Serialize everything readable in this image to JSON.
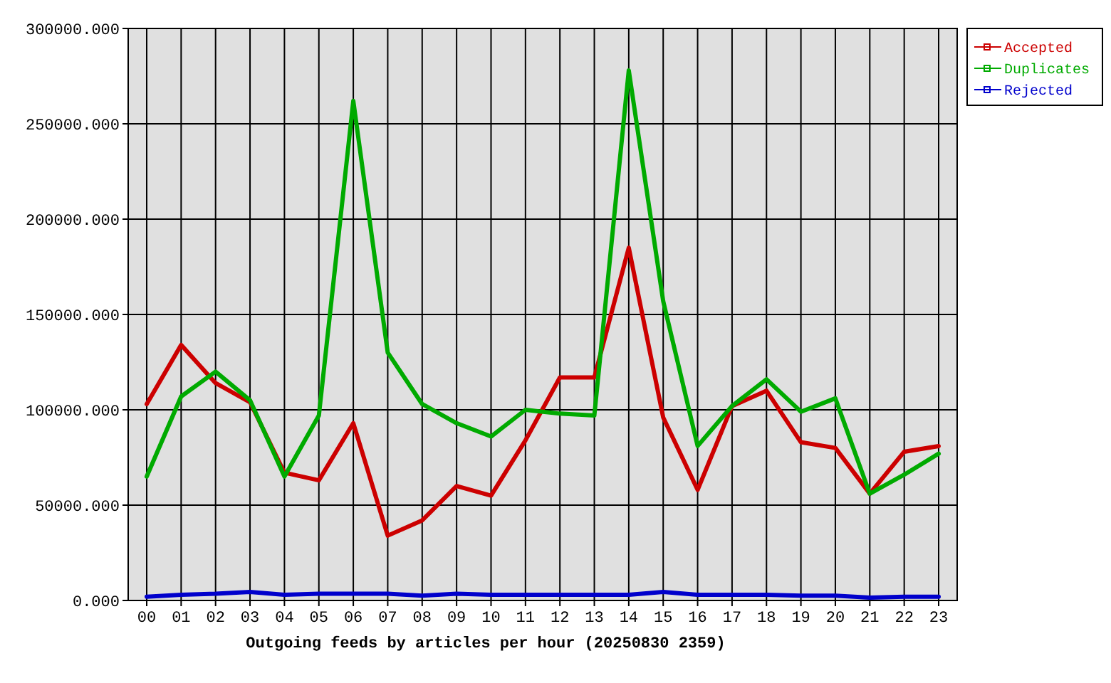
{
  "chart_data": {
    "type": "line",
    "xlabel": "Outgoing feeds by articles per hour (20250830 2359)",
    "categories": [
      "00",
      "01",
      "02",
      "03",
      "04",
      "05",
      "06",
      "07",
      "08",
      "09",
      "10",
      "11",
      "12",
      "13",
      "14",
      "15",
      "16",
      "17",
      "18",
      "19",
      "20",
      "21",
      "22",
      "23"
    ],
    "series": [
      {
        "name": "Accepted",
        "color": "#cc0000",
        "values": [
          103000,
          134000,
          114000,
          104000,
          67000,
          63000,
          93000,
          34000,
          42000,
          60000,
          55000,
          84000,
          117000,
          117000,
          185000,
          96000,
          58000,
          102000,
          110000,
          83000,
          80000,
          56000,
          78000,
          81000
        ]
      },
      {
        "name": "Duplicates",
        "color": "#00aa00",
        "values": [
          65000,
          107000,
          120000,
          105000,
          65000,
          97000,
          262000,
          130000,
          103000,
          93000,
          86000,
          100000,
          98000,
          97000,
          278000,
          157000,
          81000,
          102000,
          116000,
          99000,
          106000,
          56000,
          66000,
          77000
        ]
      },
      {
        "name": "Rejected",
        "color": "#0000cc",
        "values": [
          2000,
          3000,
          3500,
          4500,
          3000,
          3500,
          3500,
          3500,
          2500,
          3500,
          3000,
          3000,
          3000,
          3000,
          3000,
          4500,
          3000,
          3000,
          3000,
          2500,
          2500,
          1500,
          2000,
          2000
        ]
      }
    ],
    "ylim": [
      0,
      300000
    ],
    "yticks": [
      {
        "value": 0,
        "label": "0.000"
      },
      {
        "value": 50000,
        "label": "50000.000"
      },
      {
        "value": 100000,
        "label": "100000.000"
      },
      {
        "value": 150000,
        "label": "150000.000"
      },
      {
        "value": 200000,
        "label": "200000.000"
      },
      {
        "value": 250000,
        "label": "250000.000"
      },
      {
        "value": 300000,
        "label": "300000.000"
      }
    ],
    "grid": true,
    "legend": "top right"
  }
}
